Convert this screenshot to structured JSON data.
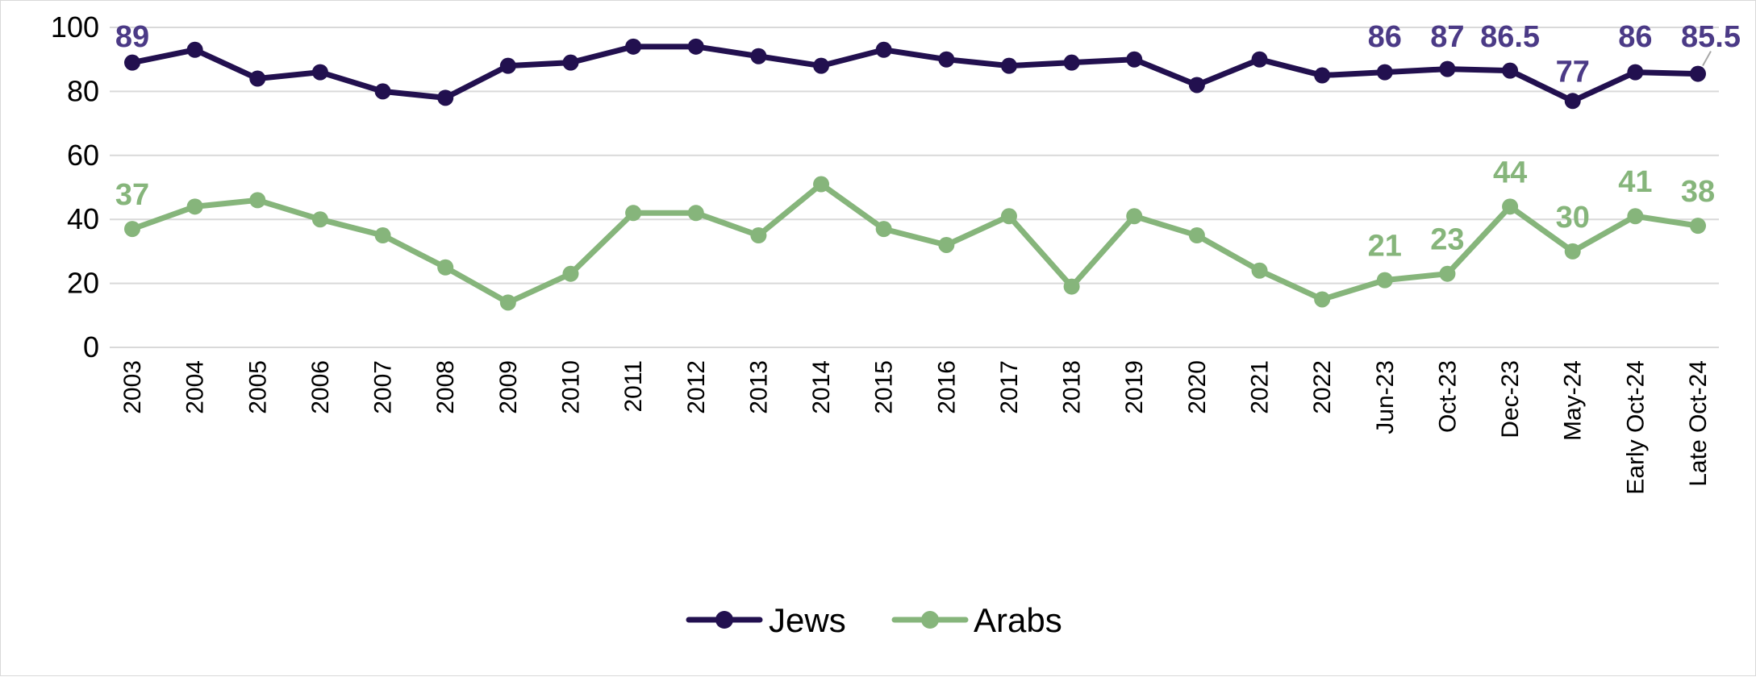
{
  "chart_data": {
    "type": "line",
    "title": "",
    "xlabel": "",
    "ylabel": "",
    "ylim": [
      0,
      100
    ],
    "yticks": [
      "0",
      "20",
      "40",
      "60",
      "80",
      "100"
    ],
    "grid": true,
    "legend_position": "bottom-center",
    "categories": [
      "2003",
      "2004",
      "2005",
      "2006",
      "2007",
      "2008",
      "2009",
      "2010",
      "2011",
      "2012",
      "2013",
      "2014",
      "2015",
      "2016",
      "2017",
      "2018",
      "2019",
      "2020",
      "2021",
      "2022",
      "Jun-23",
      "Oct-23",
      "Dec-23",
      "May-24",
      "Early Oct-24",
      "Late Oct-24"
    ],
    "series": [
      {
        "name": "Jews",
        "color": "#22104f",
        "label_color": "#4b3a86",
        "values": [
          89,
          93,
          84,
          86,
          80,
          78,
          88,
          89,
          94,
          94,
          91,
          88,
          93,
          90,
          88,
          89,
          90,
          82,
          90,
          85,
          86,
          87,
          86.5,
          77,
          86,
          85.5
        ],
        "labels": [
          "89",
          "",
          "",
          "",
          "",
          "",
          "",
          "",
          "",
          "",
          "",
          "",
          "",
          "",
          "",
          "",
          "",
          "",
          "",
          "",
          "86",
          "87",
          "86.5",
          "77",
          "86",
          "85.5"
        ]
      },
      {
        "name": "Arabs",
        "color": "#86b57b",
        "label_color": "#86b57b",
        "values": [
          37,
          44,
          46,
          40,
          35,
          25,
          14,
          23,
          42,
          42,
          35,
          51,
          37,
          32,
          41,
          19,
          41,
          35,
          24,
          15,
          21,
          23,
          44,
          30,
          41,
          38
        ],
        "labels": [
          "37",
          "",
          "",
          "",
          "",
          "",
          "",
          "",
          "",
          "",
          "",
          "",
          "",
          "",
          "",
          "",
          "",
          "",
          "",
          "",
          "21",
          "23",
          "44",
          "30",
          "41",
          "38"
        ]
      }
    ]
  }
}
